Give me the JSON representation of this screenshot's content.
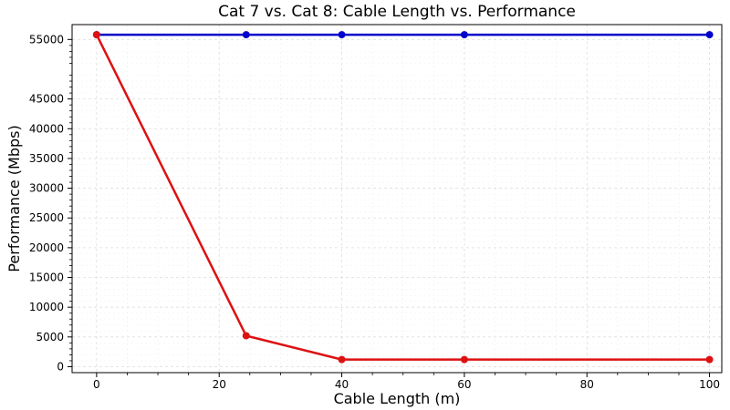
{
  "chart_data": {
    "type": "line",
    "title": "Cat 7 vs. Cat 8: Cable Length vs. Performance",
    "xlabel": "Cable Length (m)",
    "ylabel": "Performance (Mbps)",
    "xlim": [
      -4,
      102
    ],
    "ylim": [
      -1000,
      57500
    ],
    "xticks": [
      0,
      20,
      40,
      60,
      80,
      100
    ],
    "yticks": [
      0,
      5000,
      10000,
      15000,
      20000,
      25000,
      30000,
      35000,
      40000,
      45000,
      55000
    ],
    "grid": true,
    "series": [
      {
        "color": "#0000cc",
        "x": [
          0,
          24.4,
          40,
          60,
          100
        ],
        "y": [
          55800,
          55800,
          55800,
          55800,
          55800
        ]
      },
      {
        "color": "#dd1111",
        "x": [
          0,
          24.4,
          40,
          60,
          100
        ],
        "y": [
          55800,
          5200,
          1200,
          1200,
          1200
        ]
      }
    ]
  }
}
